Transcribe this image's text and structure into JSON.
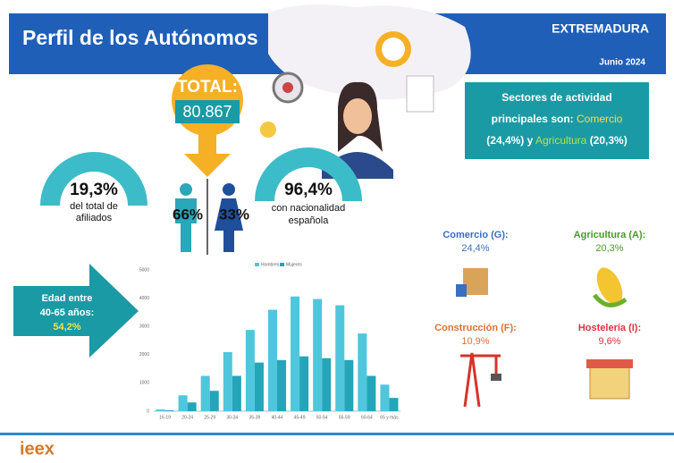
{
  "header": {
    "title": "Perfil de los Autónomos",
    "region": "EXTREMADURA",
    "date": "Junio 2024"
  },
  "total": {
    "label": "TOTAL:",
    "value": "80.867"
  },
  "share": {
    "value": "19,3%",
    "line1": "del total de",
    "line2": "afiliados"
  },
  "gender": {
    "men": "66%",
    "women": "33%"
  },
  "nationality": {
    "value": "96,4%",
    "line1": "con nacionalidad",
    "line2": "española"
  },
  "sectors_box": {
    "line1": "Sectores de actividad",
    "line2": "principales son:",
    "sector1": "Comercio",
    "pct1": "(24,4%) y",
    "sector2": "Agricultura",
    "pct2": "(20,3%)"
  },
  "age": {
    "line1": "Edad entre",
    "line2": "40-65 años:",
    "value": "54,2%"
  },
  "sectors": [
    {
      "name": "Comercio (G):",
      "value": "24,4%"
    },
    {
      "name": "Agricultura (A):",
      "value": "20,3%"
    },
    {
      "name": "Construcción (F):",
      "value": "10,9%"
    },
    {
      "name": "Hostelería (I):",
      "value": "9,6%"
    }
  ],
  "footer": {
    "logo": "ieex"
  },
  "chart_data": {
    "type": "bar",
    "categories": [
      "16-19",
      "20-24",
      "25-29",
      "30-34",
      "35-39",
      "40-44",
      "45-49",
      "50-54",
      "55-59",
      "60-64",
      "65 y más"
    ],
    "series": [
      {
        "name": "Hombres",
        "color": "#4fc6dc",
        "values": [
          60,
          560,
          1250,
          2090,
          2875,
          3590,
          4060,
          3970,
          3750,
          2750,
          940
        ]
      },
      {
        "name": "Mujeres",
        "color": "#25a5b8",
        "values": [
          30,
          310,
          720,
          1250,
          1720,
          1810,
          1940,
          1875,
          1810,
          1250,
          470
        ]
      }
    ],
    "ylim": [
      0,
      5000
    ],
    "yticks": [
      0,
      1000,
      2000,
      3000,
      4000,
      5000
    ],
    "grid": false
  }
}
